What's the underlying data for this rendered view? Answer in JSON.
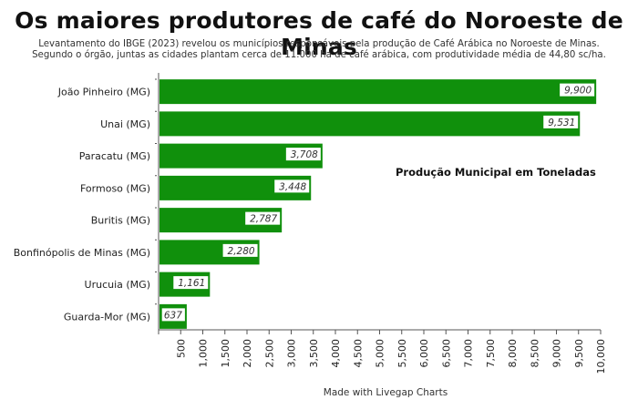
{
  "header": {
    "title": "Os maiores produtores de café do Noroeste de Minas",
    "subtitle_line1": "Levantamento do IBGE (2023) revelou os municípios responsáveis pela produção de Café Arábica no Noroeste de Minas.",
    "subtitle_line2": "Segundo o órgão, juntas as cidades plantam cerca de 11.000 ha de café arábica, com produtividade média de 44,80 sc/ha."
  },
  "annotation": "Produção Municipal em Toneladas",
  "footer": "Made with Livegap Charts",
  "colors": {
    "bar": "#10900c",
    "axis": "#555555"
  },
  "chart_data": {
    "type": "bar",
    "orientation": "horizontal",
    "categories": [
      "João Pinheiro (MG)",
      "Unai (MG)",
      "Paracatu (MG)",
      "Formoso (MG)",
      "Buritis (MG)",
      "Bonfinópolis de Minas (MG)",
      "Urucuia (MG)",
      "Guarda-Mor (MG)"
    ],
    "values": [
      9900,
      9531,
      3708,
      3448,
      2787,
      2280,
      1161,
      637
    ],
    "value_labels": [
      "9,900",
      "9,531",
      "3,708",
      "3,448",
      "2,787",
      "2,280",
      "1,161",
      "637"
    ],
    "xlim": [
      0,
      10000
    ],
    "xticks": [
      500,
      1000,
      1500,
      2000,
      2500,
      3000,
      3500,
      4000,
      4500,
      5000,
      5500,
      6000,
      6500,
      7000,
      7500,
      8000,
      8500,
      9000,
      9500,
      10000
    ],
    "xtick_labels": [
      "500",
      "1,000",
      "1,500",
      "2,000",
      "2,500",
      "3,000",
      "3,500",
      "4,000",
      "4,500",
      "5,000",
      "5,500",
      "6,000",
      "6,500",
      "7,000",
      "7,500",
      "8,000",
      "8,500",
      "9,000",
      "9,500",
      "10,000"
    ],
    "grid": false,
    "legend": "none"
  }
}
